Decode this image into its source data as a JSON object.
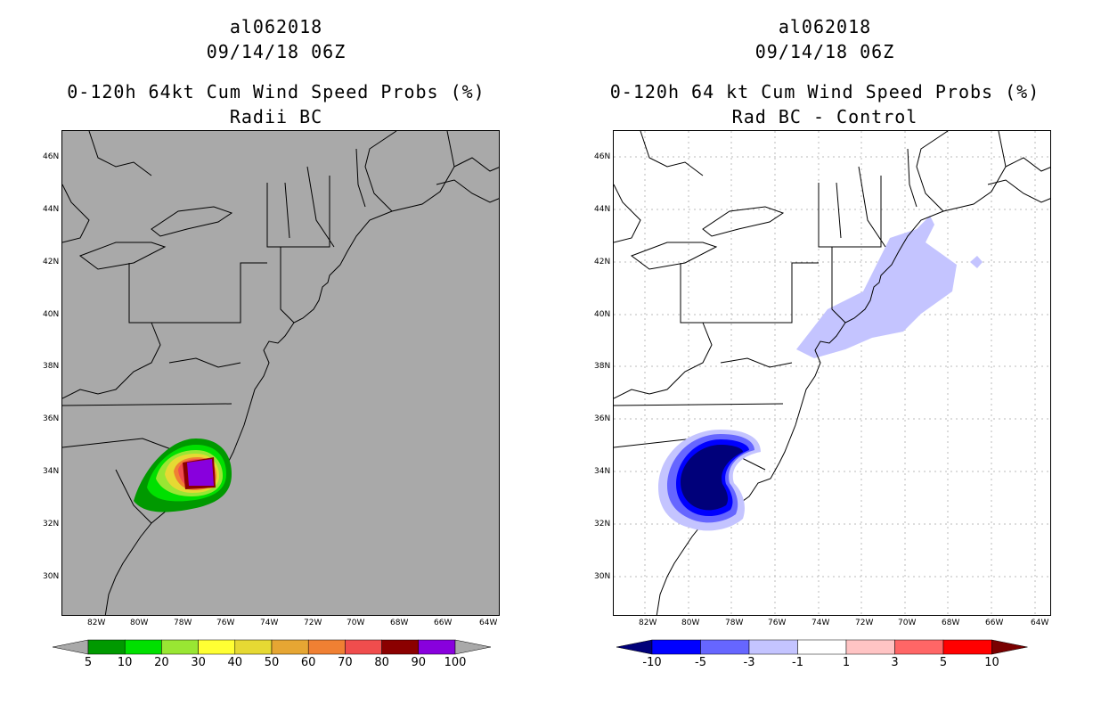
{
  "panels": [
    {
      "storm_id": "al062018",
      "datetime": "09/14/18 06Z",
      "title": "0-120h 64kt Cum Wind Speed Probs (%)",
      "subtitle": "Radii BC",
      "background": "#a9a9a9",
      "colorbar": {
        "colors": [
          "#009900",
          "#00e000",
          "#99e633",
          "#ffff33",
          "#e6d933",
          "#e6a633",
          "#f08033",
          "#f04d4d",
          "#8b0000",
          "#8800dd"
        ],
        "labels": [
          "5",
          "10",
          "20",
          "30",
          "40",
          "50",
          "60",
          "70",
          "80",
          "90",
          "100"
        ],
        "end_color": "#a9a9a9"
      }
    },
    {
      "storm_id": "al062018",
      "datetime": "09/14/18 06Z",
      "title": "0-120h 64 kt Cum Wind Speed Probs (%)",
      "subtitle": "Rad BC - Control",
      "background": "#ffffff",
      "colorbar": {
        "colors": [
          "#0000ff",
          "#6666ff",
          "#c4c4ff",
          "#ffffff",
          "#ffc4c4",
          "#ff6666",
          "#ff0000"
        ],
        "labels": [
          "-10",
          "-5",
          "-3",
          "-1",
          "1",
          "3",
          "5",
          "10"
        ],
        "start_color": "#00007a",
        "end_color": "#7a0000"
      }
    }
  ],
  "axes": {
    "lat_labels": [
      "46N",
      "44N",
      "42N",
      "40N",
      "38N",
      "36N",
      "34N",
      "32N",
      "30N"
    ],
    "lon_labels": [
      "82W",
      "80W",
      "78W",
      "76W",
      "74W",
      "72W",
      "70W",
      "68W",
      "66W",
      "64W"
    ]
  }
}
